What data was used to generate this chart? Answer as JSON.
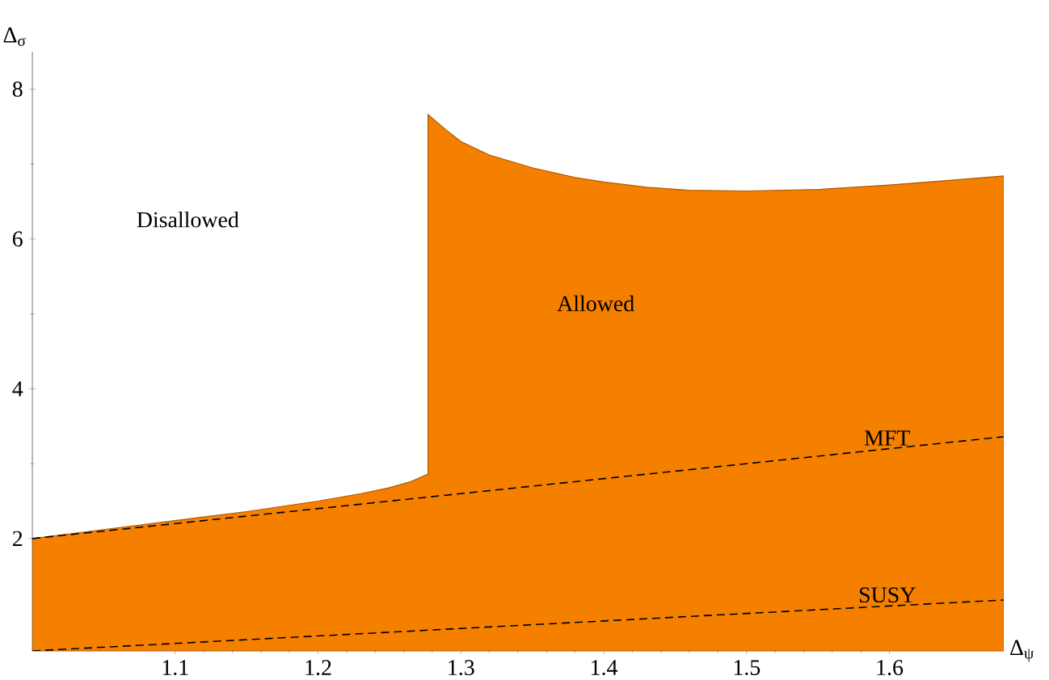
{
  "chart_data": {
    "type": "area",
    "xlabel": "Δ$_{ψ}$",
    "ylabel": "Δ$_{σ}$",
    "annotations": [
      "Disallowed",
      "Allowed"
    ],
    "series": [
      {
        "color": "#f58000",
        "x": [
          1.0,
          1.05,
          1.1,
          1.15,
          1.2,
          1.23,
          1.25,
          1.265,
          1.277,
          1.277,
          1.29,
          1.3,
          1.32,
          1.35,
          1.38,
          1.4,
          1.43,
          1.46,
          1.5,
          1.55,
          1.6,
          1.64,
          1.68
        ],
        "values": [
          2.0,
          2.12,
          2.24,
          2.36,
          2.5,
          2.6,
          2.68,
          2.76,
          2.86,
          7.66,
          7.45,
          7.3,
          7.12,
          6.95,
          6.82,
          6.76,
          6.69,
          6.65,
          6.64,
          6.66,
          6.72,
          6.78,
          6.84
        ]
      },
      {
        "type": "line",
        "name": "MFT",
        "color": "#000000",
        "line_style": "dashed",
        "x": [
          1.0,
          1.68
        ],
        "values": [
          2.0,
          3.36
        ]
      },
      {
        "type": "line",
        "name": "SUSY",
        "color": "#000000",
        "line_style": "dashed",
        "x": [
          1.0,
          1.68
        ],
        "values": [
          0.5,
          1.18
        ]
      }
    ],
    "xlim": [
      1.0,
      1.68
    ],
    "ylim": [
      0.5,
      8.5
    ],
    "xticks": [
      1.1,
      1.2,
      1.3,
      1.4,
      1.5,
      1.6
    ],
    "yticks": [
      2,
      4,
      6,
      8
    ],
    "legend": false,
    "grid": false
  }
}
